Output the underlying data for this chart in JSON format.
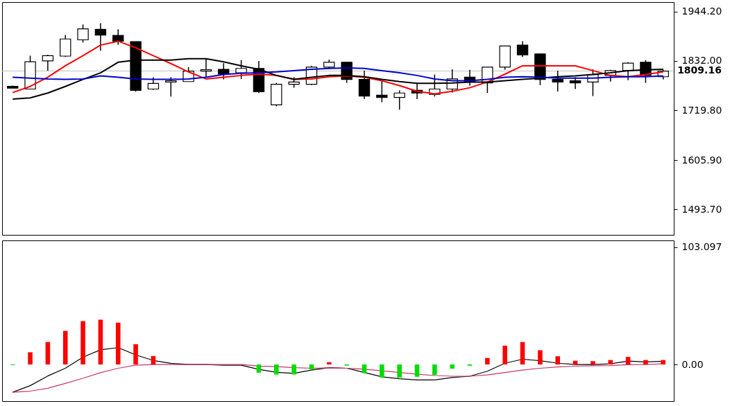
{
  "chart_data": [
    {
      "type": "candlestick",
      "categories": [
        null,
        null,
        null,
        null,
        null,
        null,
        null,
        null,
        null,
        null,
        null,
        null,
        null,
        null,
        null,
        null,
        null,
        null,
        null,
        null,
        null,
        null,
        null,
        null,
        null,
        null,
        null,
        null,
        null,
        null,
        null,
        null,
        null,
        null,
        null,
        null,
        null,
        null
      ],
      "ohlc": [
        [
          1774,
          1776,
          1770,
          1770
        ],
        [
          1768,
          1844,
          1768,
          1830
        ],
        [
          1832,
          1846,
          1810,
          1844
        ],
        [
          1843,
          1891,
          1841,
          1882
        ],
        [
          1880,
          1915,
          1874,
          1905
        ],
        [
          1904,
          1918,
          1855,
          1891
        ],
        [
          1890,
          1904,
          1869,
          1877
        ],
        [
          1876,
          1876,
          1762,
          1765
        ],
        [
          1768,
          1795,
          1766,
          1781
        ],
        [
          1784,
          1795,
          1751,
          1787
        ],
        [
          1785,
          1818,
          1785,
          1809
        ],
        [
          1809,
          1837,
          1795,
          1812
        ],
        [
          1813,
          1827,
          1790,
          1802
        ],
        [
          1805,
          1834,
          1791,
          1815
        ],
        [
          1815,
          1832,
          1759,
          1762
        ],
        [
          1732,
          1782,
          1729,
          1779
        ],
        [
          1779,
          1795,
          1771,
          1784
        ],
        [
          1779,
          1821,
          1777,
          1818
        ],
        [
          1818,
          1835,
          1815,
          1829
        ],
        [
          1829,
          1829,
          1782,
          1790
        ],
        [
          1790,
          1810,
          1745,
          1752
        ],
        [
          1754,
          1787,
          1738,
          1749
        ],
        [
          1749,
          1765,
          1721,
          1759
        ],
        [
          1765,
          1782,
          1745,
          1759
        ],
        [
          1756,
          1801,
          1751,
          1768
        ],
        [
          1768,
          1813,
          1760,
          1791
        ],
        [
          1795,
          1812,
          1776,
          1784
        ],
        [
          1782,
          1818,
          1759,
          1818
        ],
        [
          1818,
          1866,
          1812,
          1866
        ],
        [
          1868,
          1877,
          1841,
          1846
        ],
        [
          1848,
          1849,
          1777,
          1790
        ],
        [
          1790,
          1810,
          1762,
          1784
        ],
        [
          1787,
          1795,
          1768,
          1782
        ],
        [
          1784,
          1813,
          1752,
          1801
        ],
        [
          1799,
          1812,
          1785,
          1810
        ],
        [
          1810,
          1829,
          1788,
          1827
        ],
        [
          1829,
          1834,
          1782,
          1799
        ],
        [
          1796,
          1812,
          1790,
          1809
        ]
      ],
      "series": [
        {
          "type": "line",
          "color": "#ff0000",
          "values": [
            1760,
            1774,
            1795,
            1821,
            1844,
            1868,
            1877,
            1862,
            1844,
            1826,
            1807,
            1791,
            1795,
            1799,
            1802,
            1799,
            1790,
            1791,
            1796,
            1798,
            1795,
            1787,
            1776,
            1763,
            1757,
            1763,
            1771,
            1784,
            1802,
            1821,
            1821,
            1821,
            1821,
            1810,
            1799,
            1796,
            1801,
            1807
          ]
        },
        {
          "type": "line",
          "color": "#000000",
          "values": [
            1745,
            1748,
            1759,
            1774,
            1790,
            1805,
            1829,
            1834,
            1834,
            1834,
            1837,
            1837,
            1830,
            1821,
            1813,
            1799,
            1790,
            1795,
            1799,
            1799,
            1796,
            1790,
            1785,
            1781,
            1781,
            1782,
            1784,
            1784,
            1787,
            1790,
            1793,
            1796,
            1798,
            1801,
            1805,
            1810,
            1812,
            1813
          ]
        },
        {
          "type": "line",
          "color": "#0000cc",
          "values": [
            1795,
            1793,
            1791,
            1790,
            1791,
            1798,
            1795,
            1791,
            1790,
            1790,
            1791,
            1795,
            1801,
            1804,
            1805,
            1807,
            1810,
            1813,
            1815,
            1816,
            1815,
            1810,
            1805,
            1799,
            1791,
            1787,
            1787,
            1790,
            1795,
            1796,
            1795,
            1793,
            1793,
            1793,
            1795,
            1796,
            1796,
            1798
          ]
        }
      ],
      "ylim": [
        1436,
        1966
      ],
      "yticks": [
        {
          "value": 1493.7,
          "label": "1493.70"
        },
        {
          "value": 1605.9,
          "label": "1605.90"
        },
        {
          "value": 1719.8,
          "label": "1719.80"
        },
        {
          "value": 1832.0,
          "label": "1832.00"
        },
        {
          "value": 1944.2,
          "label": "1944.20"
        }
      ],
      "ref_lines": [
        {
          "axis": "y",
          "value": 1809.16,
          "label": "1809.16",
          "color": "#c0c0c0"
        }
      ],
      "tick_labels": "y",
      "grid": false
    },
    {
      "type": "bar",
      "categories": [
        null,
        null,
        null,
        null,
        null,
        null,
        null,
        null,
        null,
        null,
        null,
        null,
        null,
        null,
        null,
        null,
        null,
        null,
        null,
        null,
        null,
        null,
        null,
        null,
        null,
        null,
        null,
        null,
        null,
        null,
        null,
        null,
        null,
        null,
        null,
        null,
        null,
        null
      ],
      "series": [
        {
          "type": "bar",
          "values": [
            -0.6,
            10.7,
            19.7,
            29.5,
            38.1,
            39.3,
            36.7,
            17.8,
            7.4,
            null,
            null,
            null,
            null,
            null,
            -7.2,
            -8.8,
            -8.8,
            -4.3,
            2.0,
            -1.0,
            -7.6,
            -11.4,
            -11.6,
            -10.8,
            -9.2,
            -3.7,
            -1.1,
            5.7,
            16.5,
            19.7,
            12.5,
            7.2,
            3.3,
            2.9,
            3.9,
            6.6,
            3.9,
            3.9
          ],
          "colors": [
            "#00dd00",
            "#ff0000",
            "#ff0000",
            "#ff0000",
            "#ff0000",
            "#ff0000",
            "#ff0000",
            "#ff0000",
            "#ff0000",
            null,
            null,
            null,
            null,
            null,
            "#00dd00",
            "#00dd00",
            "#00dd00",
            "#00dd00",
            "#ff0000",
            "#00dd00",
            "#00dd00",
            "#00dd00",
            "#00dd00",
            "#00dd00",
            "#00dd00",
            "#00dd00",
            "#00dd00",
            "#ff0000",
            "#ff0000",
            "#ff0000",
            "#ff0000",
            "#ff0000",
            "#ff0000",
            "#ff0000",
            "#ff0000",
            "#ff0000",
            "#ff0000",
            "#ff0000"
          ]
        },
        {
          "type": "line",
          "color": "#000000",
          "values": [
            -24.4,
            -18.6,
            -10.1,
            -3.3,
            6.4,
            12.9,
            14.8,
            8.4,
            3.5,
            1.0,
            0,
            0,
            -0.6,
            -0.6,
            -4.3,
            -6.9,
            -7.8,
            -4.9,
            -2.8,
            -3.3,
            -7.0,
            -10.8,
            -12.5,
            -13.6,
            -13.6,
            -11.4,
            -10.3,
            -5.9,
            1.1,
            4.6,
            3.3,
            1.1,
            0,
            0,
            0.6,
            3.0,
            2.2,
            2.9
          ]
        },
        {
          "type": "line",
          "color": "#cc3366",
          "values": [
            -24.4,
            -23.4,
            -20.9,
            -16.6,
            -12.1,
            -7.2,
            -3.3,
            -0.6,
            0,
            0,
            0,
            0,
            0,
            0,
            -1.4,
            -1.9,
            -2.8,
            -3.3,
            -2.9,
            -3.3,
            -4.2,
            -5.5,
            -7.0,
            -8.6,
            -9.7,
            -10.3,
            -10.3,
            -9.2,
            -7.0,
            -4.9,
            -3.3,
            -2.2,
            -1.5,
            -1.1,
            -0.9,
            -0.2,
            0,
            0.6
          ]
        }
      ],
      "ylim": [
        -32.2,
        108.9
      ],
      "yticks": [
        {
          "value": 103.097,
          "label": "103.097"
        },
        {
          "value": 0,
          "label": "0.00"
        }
      ],
      "tick_labels": "y",
      "grid": false
    }
  ]
}
